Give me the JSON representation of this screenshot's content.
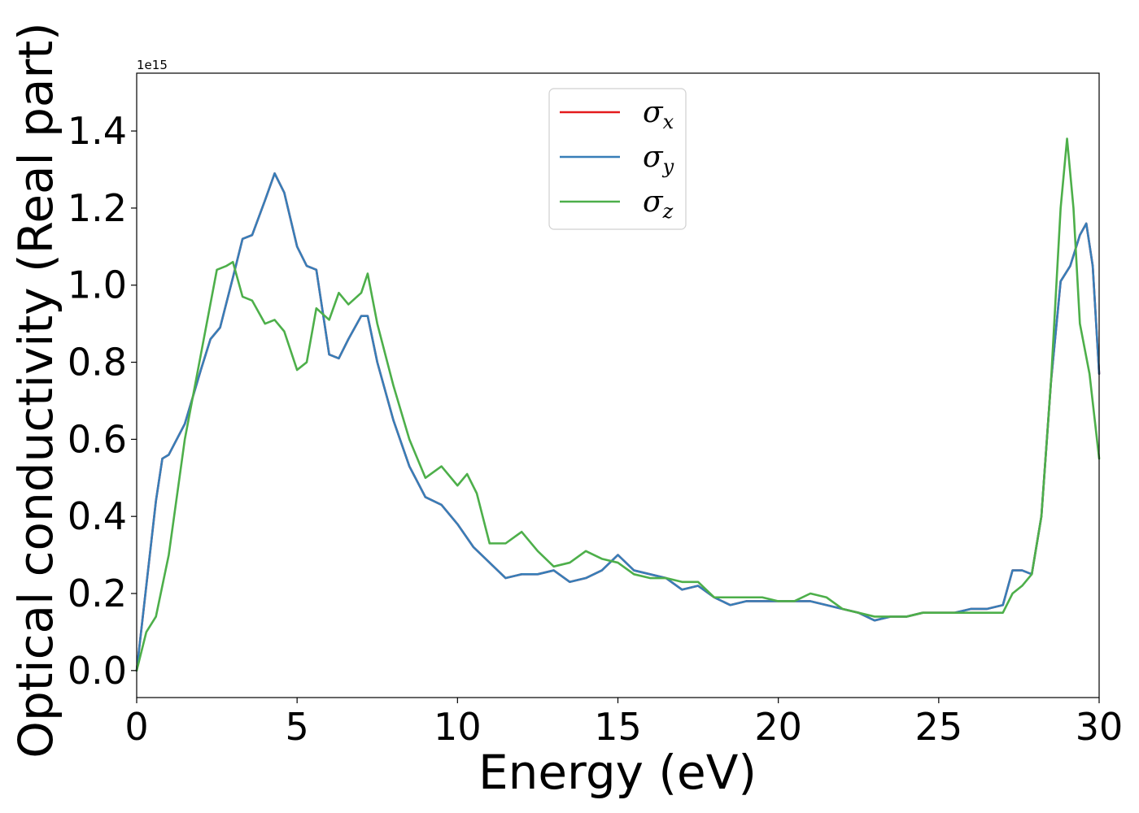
{
  "chart_data": {
    "type": "line",
    "xlabel": "Energy (eV)",
    "ylabel": "Optical conductivity (Real part)",
    "y_offset_label": "1e15",
    "xlim": [
      0,
      30
    ],
    "ylim": [
      -0.07,
      1.55
    ],
    "x_ticks": [
      0,
      5,
      10,
      15,
      20,
      25,
      30
    ],
    "y_ticks": [
      0.0,
      0.2,
      0.4,
      0.6,
      0.8,
      1.0,
      1.2,
      1.4
    ],
    "grid": false,
    "legend_position": "top-center",
    "series": [
      {
        "name": "σx",
        "legend_base": "σ",
        "legend_sub": "x",
        "color": "#e41a1c",
        "x": [
          0,
          0.3,
          0.6,
          0.8,
          1.0,
          1.5,
          2.0,
          2.3,
          2.6,
          3.0,
          3.3,
          3.6,
          4.0,
          4.3,
          4.6,
          5.0,
          5.3,
          5.6,
          6.0,
          6.3,
          6.6,
          7.0,
          7.2,
          7.5,
          8.0,
          8.5,
          9.0,
          9.5,
          10.0,
          10.5,
          11.0,
          11.5,
          12.0,
          12.5,
          13.0,
          13.5,
          14.0,
          14.5,
          15.0,
          15.5,
          16.0,
          16.5,
          17.0,
          17.5,
          18.0,
          18.5,
          19.0,
          19.5,
          20.0,
          20.5,
          21.0,
          21.5,
          22.0,
          22.5,
          23.0,
          23.5,
          24.0,
          24.5,
          25.0,
          25.5,
          26.0,
          26.5,
          27.0,
          27.3,
          27.6,
          27.9,
          28.2,
          28.5,
          28.8,
          29.1,
          29.4,
          29.6,
          29.8,
          30.0
        ],
        "y": [
          0.0,
          0.22,
          0.44,
          0.55,
          0.56,
          0.64,
          0.78,
          0.86,
          0.89,
          1.02,
          1.12,
          1.13,
          1.22,
          1.29,
          1.24,
          1.1,
          1.05,
          1.04,
          0.82,
          0.81,
          0.86,
          0.92,
          0.92,
          0.8,
          0.65,
          0.53,
          0.45,
          0.43,
          0.38,
          0.32,
          0.28,
          0.24,
          0.25,
          0.25,
          0.26,
          0.23,
          0.24,
          0.26,
          0.3,
          0.26,
          0.25,
          0.24,
          0.21,
          0.22,
          0.19,
          0.17,
          0.18,
          0.18,
          0.18,
          0.18,
          0.18,
          0.17,
          0.16,
          0.15,
          0.13,
          0.14,
          0.14,
          0.15,
          0.15,
          0.15,
          0.16,
          0.16,
          0.17,
          0.26,
          0.26,
          0.25,
          0.4,
          0.75,
          1.01,
          1.05,
          1.13,
          1.16,
          1.05,
          0.77
        ]
      },
      {
        "name": "σy",
        "legend_base": "σ",
        "legend_sub": "y",
        "color": "#377eb8",
        "x": [
          0,
          0.3,
          0.6,
          0.8,
          1.0,
          1.5,
          2.0,
          2.3,
          2.6,
          3.0,
          3.3,
          3.6,
          4.0,
          4.3,
          4.6,
          5.0,
          5.3,
          5.6,
          6.0,
          6.3,
          6.6,
          7.0,
          7.2,
          7.5,
          8.0,
          8.5,
          9.0,
          9.5,
          10.0,
          10.5,
          11.0,
          11.5,
          12.0,
          12.5,
          13.0,
          13.5,
          14.0,
          14.5,
          15.0,
          15.5,
          16.0,
          16.5,
          17.0,
          17.5,
          18.0,
          18.5,
          19.0,
          19.5,
          20.0,
          20.5,
          21.0,
          21.5,
          22.0,
          22.5,
          23.0,
          23.5,
          24.0,
          24.5,
          25.0,
          25.5,
          26.0,
          26.5,
          27.0,
          27.3,
          27.6,
          27.9,
          28.2,
          28.5,
          28.8,
          29.1,
          29.4,
          29.6,
          29.8,
          30.0
        ],
        "y": [
          0.0,
          0.22,
          0.44,
          0.55,
          0.56,
          0.64,
          0.78,
          0.86,
          0.89,
          1.02,
          1.12,
          1.13,
          1.22,
          1.29,
          1.24,
          1.1,
          1.05,
          1.04,
          0.82,
          0.81,
          0.86,
          0.92,
          0.92,
          0.8,
          0.65,
          0.53,
          0.45,
          0.43,
          0.38,
          0.32,
          0.28,
          0.24,
          0.25,
          0.25,
          0.26,
          0.23,
          0.24,
          0.26,
          0.3,
          0.26,
          0.25,
          0.24,
          0.21,
          0.22,
          0.19,
          0.17,
          0.18,
          0.18,
          0.18,
          0.18,
          0.18,
          0.17,
          0.16,
          0.15,
          0.13,
          0.14,
          0.14,
          0.15,
          0.15,
          0.15,
          0.16,
          0.16,
          0.17,
          0.26,
          0.26,
          0.25,
          0.4,
          0.75,
          1.01,
          1.05,
          1.13,
          1.16,
          1.05,
          0.77
        ]
      },
      {
        "name": "σz",
        "legend_base": "σ",
        "legend_sub": "z",
        "color": "#4daf4a",
        "x": [
          0,
          0.3,
          0.6,
          1.0,
          1.5,
          2.0,
          2.5,
          2.8,
          3.0,
          3.3,
          3.6,
          4.0,
          4.3,
          4.6,
          5.0,
          5.3,
          5.6,
          6.0,
          6.3,
          6.6,
          7.0,
          7.2,
          7.5,
          8.0,
          8.5,
          9.0,
          9.5,
          10.0,
          10.3,
          10.6,
          11.0,
          11.5,
          12.0,
          12.5,
          13.0,
          13.5,
          14.0,
          14.5,
          15.0,
          15.5,
          16.0,
          16.5,
          17.0,
          17.5,
          18.0,
          18.5,
          19.0,
          19.5,
          20.0,
          20.5,
          21.0,
          21.5,
          22.0,
          22.5,
          23.0,
          23.5,
          24.0,
          24.5,
          25.0,
          25.5,
          26.0,
          26.5,
          27.0,
          27.3,
          27.6,
          27.9,
          28.2,
          28.5,
          28.8,
          29.0,
          29.2,
          29.4,
          29.7,
          30.0
        ],
        "y": [
          0.0,
          0.1,
          0.14,
          0.3,
          0.6,
          0.82,
          1.04,
          1.05,
          1.06,
          0.97,
          0.96,
          0.9,
          0.91,
          0.88,
          0.78,
          0.8,
          0.94,
          0.91,
          0.98,
          0.95,
          0.98,
          1.03,
          0.9,
          0.74,
          0.6,
          0.5,
          0.53,
          0.48,
          0.51,
          0.46,
          0.33,
          0.33,
          0.36,
          0.31,
          0.27,
          0.28,
          0.31,
          0.29,
          0.28,
          0.25,
          0.24,
          0.24,
          0.23,
          0.23,
          0.19,
          0.19,
          0.19,
          0.19,
          0.18,
          0.18,
          0.2,
          0.19,
          0.16,
          0.15,
          0.14,
          0.14,
          0.14,
          0.15,
          0.15,
          0.15,
          0.15,
          0.15,
          0.15,
          0.2,
          0.22,
          0.25,
          0.4,
          0.75,
          1.2,
          1.38,
          1.2,
          0.9,
          0.77,
          0.55
        ]
      }
    ]
  }
}
